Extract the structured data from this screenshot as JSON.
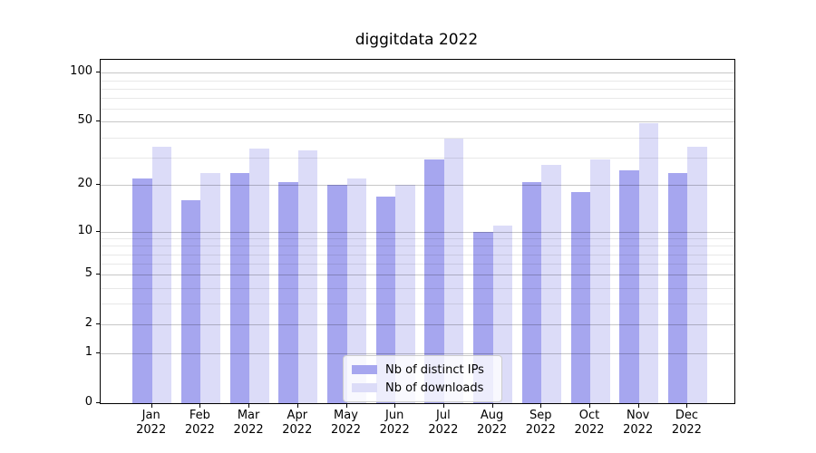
{
  "chart_data": {
    "type": "bar",
    "title": "diggitdata 2022",
    "categories": [
      "Jan",
      "Feb",
      "Mar",
      "Apr",
      "May",
      "Jun",
      "Jul",
      "Aug",
      "Sep",
      "Oct",
      "Nov",
      "Dec"
    ],
    "category_year": "2022",
    "series": [
      {
        "name": "Nb of distinct IPs",
        "color": "#a6a6ef",
        "values": [
          22,
          16,
          24,
          21,
          20,
          17,
          29,
          10,
          21,
          18,
          25,
          24
        ]
      },
      {
        "name": "Nb of downloads",
        "color": "#dcdcf8",
        "values": [
          35,
          24,
          34,
          33,
          22,
          20,
          39,
          11,
          27,
          29,
          49,
          35
        ]
      }
    ],
    "xlabel": "",
    "ylabel": "",
    "y_scale": "log10(1+v)",
    "ylim": [
      0,
      120
    ],
    "y_ticks": [
      0,
      1,
      2,
      5,
      10,
      20,
      50,
      100
    ],
    "y_minor_gridlines": [
      3,
      4,
      6,
      7,
      8,
      9,
      30,
      40,
      60,
      70,
      80,
      90
    ],
    "grid": true,
    "legend_position": "lower center"
  }
}
